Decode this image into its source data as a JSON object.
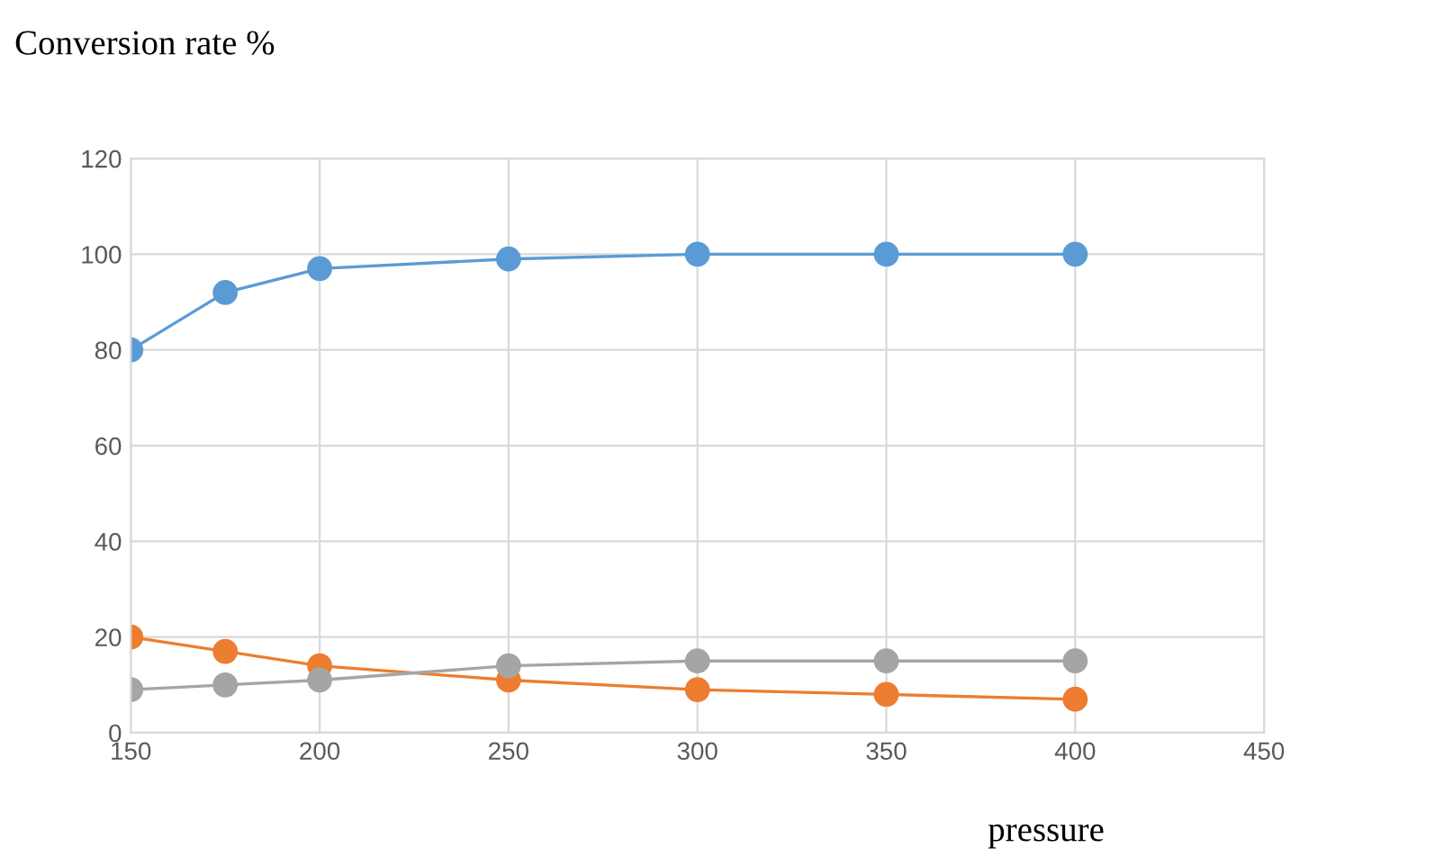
{
  "chart_data": {
    "type": "line",
    "title": "Conversion rate %",
    "xlabel": "pressure",
    "x": [
      150,
      175,
      200,
      250,
      300,
      350,
      400
    ],
    "series": [
      {
        "color": "#5b9bd5",
        "values": [
          80,
          92,
          97,
          99,
          100,
          100,
          100
        ]
      },
      {
        "color": "#ed7d31",
        "values": [
          20,
          17,
          14,
          11,
          9,
          8,
          7
        ]
      },
      {
        "color": "#a5a5a5",
        "values": [
          9,
          10,
          11,
          14,
          15,
          15,
          15
        ]
      }
    ],
    "xlim": [
      150,
      450
    ],
    "xticks": [
      150,
      200,
      250,
      300,
      350,
      400,
      450
    ],
    "ylim": [
      0,
      120
    ],
    "yticks": [
      0,
      20,
      40,
      60,
      80,
      100,
      120
    ],
    "grid": true,
    "marker": "circle",
    "line_style": "solid"
  }
}
